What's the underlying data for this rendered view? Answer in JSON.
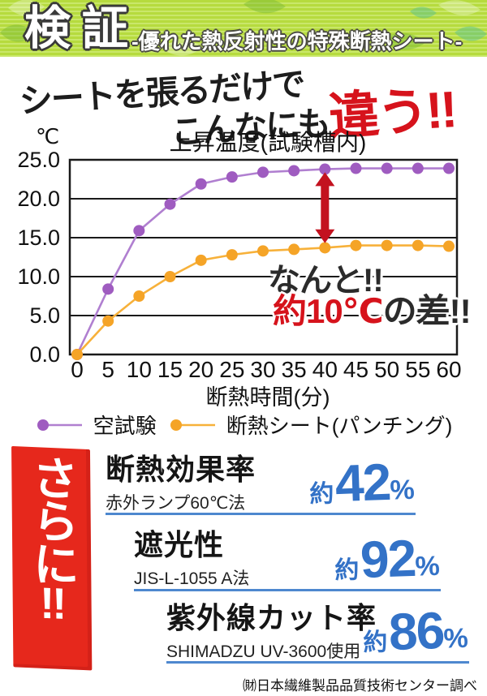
{
  "header": {
    "badge": "検証",
    "subtitle": "-優れた熱反射性の特殊断熱シート-",
    "bg_color": "#b6db3e"
  },
  "headline": {
    "line1": "シートを張るだけで",
    "line2_black": "こんなにも",
    "line2_red": "違う!!",
    "red_color": "#d6131c"
  },
  "chart_data": {
    "type": "line",
    "title": "上昇温度(試験槽内)",
    "y_unit": "℃",
    "xlabel": "断熱時間(分)",
    "x": [
      0,
      5,
      10,
      15,
      20,
      25,
      30,
      35,
      40,
      45,
      50,
      55,
      60
    ],
    "ylim": [
      0,
      25
    ],
    "yticks": [
      0,
      5,
      10,
      15,
      20,
      25
    ],
    "ytick_labels": [
      "0.0",
      "5.0",
      "10.0",
      "15.0",
      "20.0",
      "25.0"
    ],
    "grid": true,
    "legend_position": "bottom",
    "series": [
      {
        "name": "空試験",
        "color": "#9f5cc0",
        "line_color": "#b07fd0",
        "values": [
          0,
          8.4,
          15.9,
          19.3,
          21.9,
          22.8,
          23.4,
          23.6,
          23.8,
          23.9,
          23.9,
          23.9,
          23.9
        ]
      },
      {
        "name": "断熱シート(パンチング)",
        "color": "#f5a427",
        "line_color": "#f7b13a",
        "values": [
          0,
          4.3,
          7.5,
          10.0,
          12.1,
          12.8,
          13.3,
          13.5,
          13.7,
          14.0,
          14.0,
          14.0,
          13.9
        ]
      }
    ],
    "annotation": {
      "arrow": {
        "x": 40,
        "y_from": 23.4,
        "y_to": 14.3,
        "color": "#c3121f"
      },
      "text_line1": "なんと!!",
      "text_line2_red": "約10℃",
      "text_line2_black": "の差!!",
      "red_color": "#d6131c"
    }
  },
  "stats": {
    "accent_color": "#3372c7",
    "divider_color": "#4e88cf",
    "banner": {
      "text_vertical": "さらに",
      "text_bang": "!!",
      "bg": "#e6281c"
    },
    "rows": [
      {
        "title": "断熱効果率",
        "method": "赤外ランプ60℃法",
        "prefix": "約",
        "value": "42",
        "unit": "%"
      },
      {
        "title": "遮光性",
        "method": "JIS-L-1055 A法",
        "prefix": "約",
        "value": "92",
        "unit": "%"
      },
      {
        "title": "紫外線カット率",
        "method": "SHIMADZU UV-3600使用",
        "prefix": "約",
        "value": "86",
        "unit": "%"
      }
    ]
  },
  "footer": {
    "source": "㈶日本繊維製品品質技術センター調べ"
  }
}
